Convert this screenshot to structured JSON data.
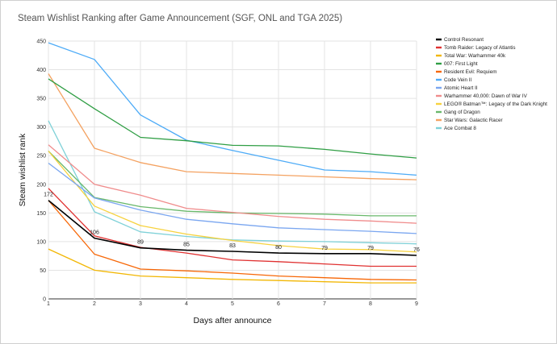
{
  "chart_data": {
    "type": "line",
    "title": "Steam Wishlist Ranking after Game Announcement (SGF, ONL and TGA 2025)",
    "xlabel": "Days after announce",
    "ylabel": "Steam wishlist rank",
    "x": [
      1,
      2,
      3,
      4,
      5,
      6,
      7,
      8,
      9
    ],
    "xlim": [
      1,
      9
    ],
    "ylim": [
      0,
      450
    ],
    "yticks": [
      0,
      50,
      100,
      150,
      200,
      250,
      300,
      350,
      400,
      450
    ],
    "grid": true,
    "legend_position": "right",
    "series": [
      {
        "name": "Control Resonant",
        "color": "#000000",
        "values": [
          172,
          106,
          89,
          85,
          83,
          80,
          79,
          79,
          76
        ],
        "data_labels": [
          "172",
          "106",
          "89",
          "85",
          "83",
          "80",
          "79",
          "79",
          "76"
        ]
      },
      {
        "name": "Tomb Raider: Legacy of Atlantis",
        "color": "#e03131",
        "values": [
          193,
          110,
          90,
          80,
          68,
          65,
          61,
          57,
          57
        ]
      },
      {
        "name": "Total War: Warhammer 40k",
        "color": "#f2b705",
        "values": [
          87,
          50,
          40,
          37,
          34,
          32,
          30,
          28,
          28
        ]
      },
      {
        "name": "007: First Light",
        "color": "#2f9e44",
        "values": [
          384,
          332,
          282,
          276,
          268,
          267,
          261,
          253,
          246
        ]
      },
      {
        "name": "Resident Evil: Requiem",
        "color": "#f76707",
        "values": [
          172,
          78,
          52,
          49,
          45,
          40,
          37,
          34,
          33
        ]
      },
      {
        "name": "Code Vein II",
        "color": "#4dabf7",
        "values": [
          447,
          418,
          321,
          277,
          259,
          242,
          225,
          222,
          216
        ]
      },
      {
        "name": "Atomic Heart II",
        "color": "#7aa6f0",
        "values": [
          237,
          176,
          155,
          139,
          131,
          124,
          121,
          118,
          114
        ]
      },
      {
        "name": "Warhammer 40,000: Dawn of War IV",
        "color": "#f08c8c",
        "values": [
          269,
          200,
          181,
          158,
          151,
          144,
          139,
          136,
          132
        ]
      },
      {
        "name": "LEGO® Batman™: Legacy of the Dark Knight",
        "color": "#f7d23e",
        "values": [
          258,
          162,
          128,
          113,
          102,
          93,
          87,
          86,
          82
        ]
      },
      {
        "name": "Gang of Dragon",
        "color": "#69b86b",
        "values": [
          258,
          177,
          161,
          153,
          150,
          149,
          148,
          145,
          145
        ]
      },
      {
        "name": "Star Wars: Galactic Racer",
        "color": "#f4a261",
        "values": [
          393,
          263,
          238,
          222,
          219,
          216,
          213,
          210,
          208
        ]
      },
      {
        "name": "Ace Combat 8",
        "color": "#7fd1d8",
        "values": [
          311,
          152,
          117,
          109,
          103,
          101,
          100,
          98,
          96
        ]
      }
    ]
  }
}
